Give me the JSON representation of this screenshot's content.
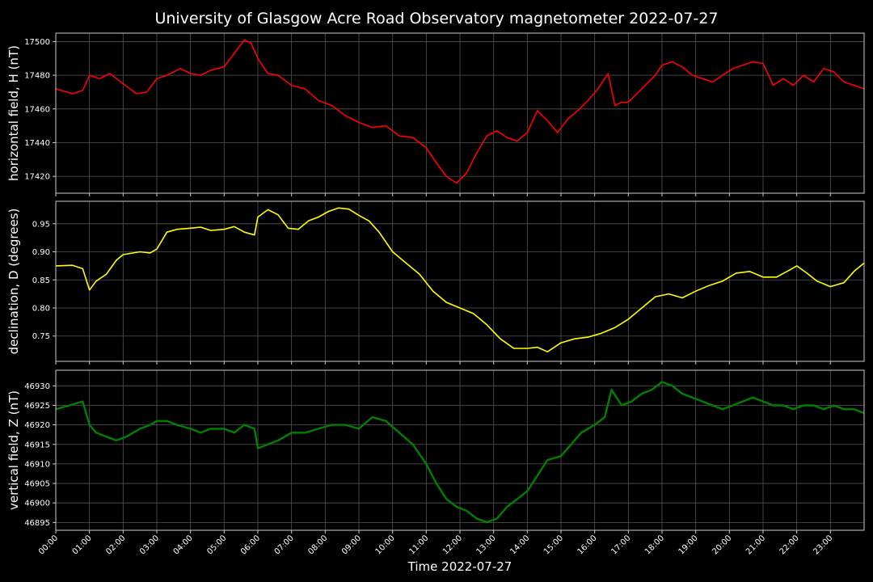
{
  "chart_data": {
    "title": "University of Glasgow Acre Road Observatory magnetometer 2022-07-27",
    "xlabel": "Time 2022-07-27",
    "x_ticks": [
      "00:00",
      "01:00",
      "02:00",
      "03:00",
      "04:00",
      "05:00",
      "06:00",
      "07:00",
      "08:00",
      "09:00",
      "10:00",
      "11:00",
      "12:00",
      "13:00",
      "14:00",
      "15:00",
      "16:00",
      "17:00",
      "18:00",
      "19:00",
      "20:00",
      "21:00",
      "22:00",
      "23:00"
    ],
    "panels": [
      {
        "type": "line",
        "ylabel": "horizontal field, H (nT)",
        "color": "#ff0000",
        "ylim": [
          17410,
          17505
        ],
        "yticks": [
          17420,
          17440,
          17460,
          17480,
          17500
        ],
        "x": [
          0,
          0.5,
          0.8,
          1.0,
          1.3,
          1.6,
          2.0,
          2.4,
          2.7,
          3.0,
          3.3,
          3.7,
          4.0,
          4.3,
          4.6,
          5.0,
          5.3,
          5.6,
          5.8,
          6.0,
          6.3,
          6.6,
          7.0,
          7.4,
          7.8,
          8.2,
          8.6,
          9.0,
          9.4,
          9.8,
          10.2,
          10.6,
          11.0,
          11.3,
          11.6,
          11.9,
          12.2,
          12.5,
          12.8,
          13.1,
          13.4,
          13.7,
          14.0,
          14.3,
          14.6,
          14.9,
          15.2,
          15.5,
          15.8,
          16.1,
          16.4,
          16.6,
          16.8,
          17.0,
          17.2,
          17.4,
          17.6,
          17.8,
          18.0,
          18.3,
          18.6,
          18.9,
          19.2,
          19.5,
          19.8,
          20.1,
          20.4,
          20.7,
          21.0,
          21.3,
          21.6,
          21.9,
          22.2,
          22.5,
          22.8,
          23.1,
          23.4,
          23.7,
          24.0
        ],
        "values": [
          17472,
          17469,
          17471,
          17480,
          17478,
          17481,
          17475,
          17469,
          17470,
          17478,
          17480,
          17484,
          17481,
          17480,
          17483,
          17485,
          17493,
          17501,
          17499,
          17490,
          17481,
          17480,
          17474,
          17472,
          17465,
          17462,
          17456,
          17452,
          17449,
          17450,
          17444,
          17443,
          17437,
          17428,
          17420,
          17416,
          17422,
          17434,
          17444,
          17447,
          17443,
          17441,
          17446,
          17459,
          17453,
          17446,
          17454,
          17459,
          17465,
          17472,
          17481,
          17462,
          17464,
          17464,
          17468,
          17472,
          17476,
          17480,
          17486,
          17488,
          17485,
          17480,
          17478,
          17476,
          17480,
          17484,
          17486,
          17488,
          17487,
          17474,
          17478,
          17474,
          17480,
          17476,
          17484,
          17482,
          17476,
          17474,
          17472
        ]
      },
      {
        "type": "line",
        "ylabel": "declination, D (degrees)",
        "color": "#ffff00",
        "ylim": [
          0.705,
          0.99
        ],
        "yticks": [
          0.75,
          0.8,
          0.85,
          0.9,
          0.95
        ],
        "x": [
          0,
          0.5,
          0.8,
          1.0,
          1.2,
          1.5,
          1.8,
          2.0,
          2.5,
          2.8,
          3.0,
          3.3,
          3.6,
          4.0,
          4.3,
          4.6,
          5.0,
          5.3,
          5.6,
          5.9,
          6.0,
          6.3,
          6.6,
          6.9,
          7.2,
          7.5,
          7.8,
          8.1,
          8.4,
          8.7,
          9.0,
          9.3,
          9.6,
          10.0,
          10.4,
          10.8,
          11.2,
          11.6,
          12.0,
          12.4,
          12.8,
          13.2,
          13.6,
          14.0,
          14.3,
          14.6,
          15.0,
          15.4,
          15.8,
          16.2,
          16.6,
          17.0,
          17.4,
          17.8,
          18.2,
          18.6,
          19.0,
          19.4,
          19.8,
          20.2,
          20.6,
          21.0,
          21.4,
          21.8,
          22.0,
          22.3,
          22.6,
          23.0,
          23.4,
          23.7,
          24.0
        ],
        "values": [
          0.875,
          0.876,
          0.87,
          0.832,
          0.848,
          0.86,
          0.885,
          0.895,
          0.9,
          0.898,
          0.905,
          0.935,
          0.94,
          0.942,
          0.944,
          0.938,
          0.94,
          0.945,
          0.935,
          0.93,
          0.962,
          0.975,
          0.966,
          0.942,
          0.94,
          0.955,
          0.962,
          0.972,
          0.978,
          0.976,
          0.965,
          0.955,
          0.935,
          0.9,
          0.88,
          0.86,
          0.83,
          0.81,
          0.8,
          0.79,
          0.77,
          0.745,
          0.728,
          0.728,
          0.73,
          0.722,
          0.738,
          0.745,
          0.748,
          0.755,
          0.765,
          0.78,
          0.8,
          0.82,
          0.825,
          0.818,
          0.83,
          0.84,
          0.848,
          0.862,
          0.865,
          0.855,
          0.855,
          0.868,
          0.875,
          0.862,
          0.848,
          0.838,
          0.845,
          0.865,
          0.88
        ]
      },
      {
        "type": "line",
        "ylabel": "vertical field, Z (nT)",
        "color": "#008000",
        "ylim": [
          46893,
          46934
        ],
        "yticks": [
          46895,
          46900,
          46905,
          46910,
          46915,
          46920,
          46925,
          46930
        ],
        "x": [
          0,
          0.4,
          0.8,
          1.0,
          1.2,
          1.5,
          1.8,
          2.1,
          2.5,
          2.8,
          3.0,
          3.3,
          3.6,
          4.0,
          4.3,
          4.6,
          5.0,
          5.3,
          5.6,
          5.9,
          6.0,
          6.3,
          6.6,
          7.0,
          7.4,
          7.8,
          8.2,
          8.6,
          9.0,
          9.4,
          9.8,
          10.2,
          10.6,
          11.0,
          11.3,
          11.6,
          11.9,
          12.2,
          12.5,
          12.8,
          13.1,
          13.4,
          13.7,
          14.0,
          14.3,
          14.6,
          15.0,
          15.3,
          15.6,
          16.0,
          16.3,
          16.5,
          16.8,
          17.1,
          17.4,
          17.7,
          18.0,
          18.3,
          18.6,
          18.9,
          19.2,
          19.5,
          19.8,
          20.1,
          20.4,
          20.7,
          21.0,
          21.3,
          21.6,
          21.9,
          22.2,
          22.5,
          22.8,
          23.1,
          23.4,
          23.7,
          24.0
        ],
        "values": [
          46924,
          46925,
          46926,
          46920,
          46918,
          46917,
          46916,
          46917,
          46919,
          46920,
          46921,
          46921,
          46920,
          46919,
          46918,
          46919,
          46919,
          46918,
          46920,
          46919,
          46914,
          46915,
          46916,
          46918,
          46918,
          46919,
          46920,
          46920,
          46919,
          46922,
          46921,
          46918,
          46915,
          46910,
          46905,
          46901,
          46899,
          46898,
          46896,
          46895,
          46896,
          46899,
          46901,
          46903,
          46907,
          46911,
          46912,
          46915,
          46918,
          46920,
          46922,
          46929,
          46925,
          46926,
          46928,
          46929,
          46931,
          46930,
          46928,
          46927,
          46926,
          46925,
          46924,
          46925,
          46926,
          46927,
          46926,
          46925,
          46925,
          46924,
          46925,
          46925,
          46924,
          46925,
          46924,
          46924,
          46923
        ]
      }
    ]
  }
}
